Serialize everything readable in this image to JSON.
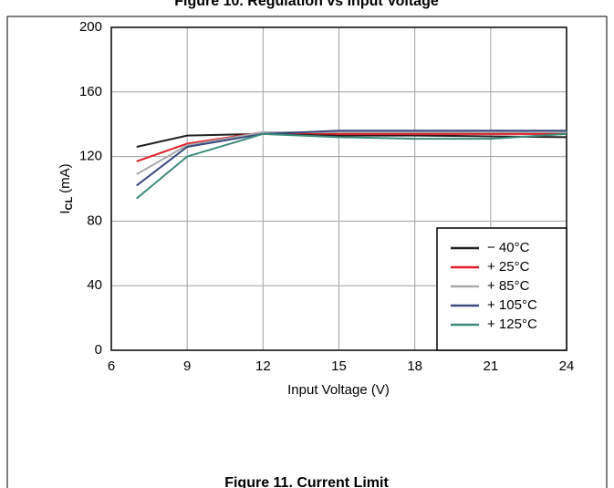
{
  "chart_data": {
    "type": "line",
    "title": "Figure 10. Regulation vs Input Voltage",
    "caption": "Figure 11. Current Limit",
    "x_label": "Input Voltage (V)",
    "y_label": {
      "main": "I",
      "sub": "CL",
      "unit": "(mA)"
    },
    "x": [
      7,
      9,
      12,
      15,
      18,
      21,
      24
    ],
    "xlim": [
      6,
      24
    ],
    "xticks": [
      6,
      9,
      12,
      15,
      18,
      21,
      24
    ],
    "ylim": [
      0,
      200
    ],
    "yticks": [
      0,
      40,
      80,
      120,
      160,
      200
    ],
    "grid": true,
    "legend": "lower right",
    "series": [
      {
        "name": "− 40°C",
        "color": "#231f20",
        "values": [
          126,
          133,
          134,
          133,
          133,
          132.5,
          132
        ]
      },
      {
        "name": "+ 25°C",
        "color": "#e31b23",
        "values": [
          117,
          128,
          135,
          134,
          134,
          134,
          134
        ]
      },
      {
        "name": "+ 85°C",
        "color": "#a7a9ac",
        "values": [
          109,
          127,
          135,
          135,
          135,
          135,
          135
        ]
      },
      {
        "name": "+ 105°C",
        "color": "#3c4a80",
        "values": [
          102,
          126,
          134,
          136,
          136,
          136,
          136
        ]
      },
      {
        "name": "+ 125°C",
        "color": "#3a8a7a",
        "values": [
          94,
          120,
          134,
          132,
          131,
          131,
          134
        ]
      }
    ]
  }
}
